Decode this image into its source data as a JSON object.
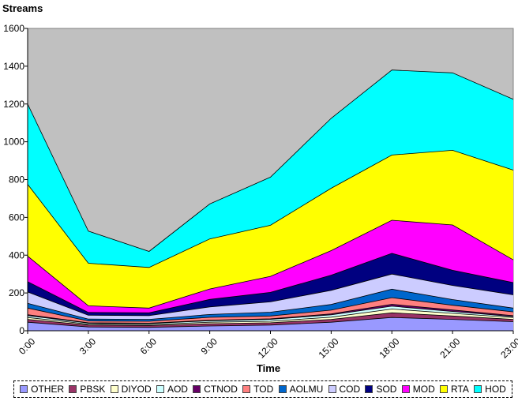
{
  "chart_data": {
    "type": "area",
    "stacked": true,
    "ylabel": "Streams",
    "xlabel": "Time",
    "categories": [
      "0:00",
      "3:00",
      "6:00",
      "9:00",
      "12:00",
      "15:00",
      "18:00",
      "21:00",
      "23:00"
    ],
    "ylim": [
      0,
      1600
    ],
    "yticks": [
      0,
      200,
      400,
      600,
      800,
      1000,
      1200,
      1400,
      1600
    ],
    "plot_background": "#c0c0c0",
    "legend_position": "bottom",
    "series": [
      {
        "name": "OTHER",
        "color": "#9999ff",
        "values": [
          45,
          20,
          18,
          25,
          30,
          45,
          70,
          60,
          48
        ]
      },
      {
        "name": "PBSK",
        "color": "#993366",
        "values": [
          15,
          10,
          10,
          12,
          12,
          15,
          25,
          18,
          12
        ]
      },
      {
        "name": "DIYOD",
        "color": "#ffffcc",
        "values": [
          10,
          5,
          5,
          8,
          8,
          12,
          20,
          14,
          10
        ]
      },
      {
        "name": "AOD",
        "color": "#ccffff",
        "values": [
          10,
          5,
          5,
          8,
          10,
          12,
          15,
          10,
          5
        ]
      },
      {
        "name": "CTNOD",
        "color": "#660066",
        "values": [
          5,
          2,
          2,
          3,
          3,
          5,
          10,
          8,
          5
        ]
      },
      {
        "name": "TOD",
        "color": "#ff8080",
        "values": [
          35,
          10,
          10,
          15,
          15,
          20,
          35,
          25,
          20
        ]
      },
      {
        "name": "AOLMU",
        "color": "#0066cc",
        "values": [
          25,
          10,
          10,
          15,
          20,
          30,
          45,
          30,
          20
        ]
      },
      {
        "name": "COD",
        "color": "#ccccff",
        "values": [
          60,
          20,
          20,
          40,
          55,
          75,
          80,
          75,
          70
        ]
      },
      {
        "name": "SOD",
        "color": "#000080",
        "values": [
          55,
          15,
          15,
          40,
          50,
          80,
          110,
          80,
          65
        ]
      },
      {
        "name": "MOD",
        "color": "#ff00ff",
        "values": [
          135,
          35,
          25,
          55,
          85,
          130,
          175,
          240,
          120
        ]
      },
      {
        "name": "RTA",
        "color": "#ffff00",
        "values": [
          380,
          225,
          215,
          265,
          270,
          330,
          345,
          395,
          475
        ]
      },
      {
        "name": "HOD",
        "color": "#00ffff",
        "values": [
          425,
          170,
          85,
          185,
          255,
          370,
          450,
          410,
          375
        ]
      }
    ]
  }
}
